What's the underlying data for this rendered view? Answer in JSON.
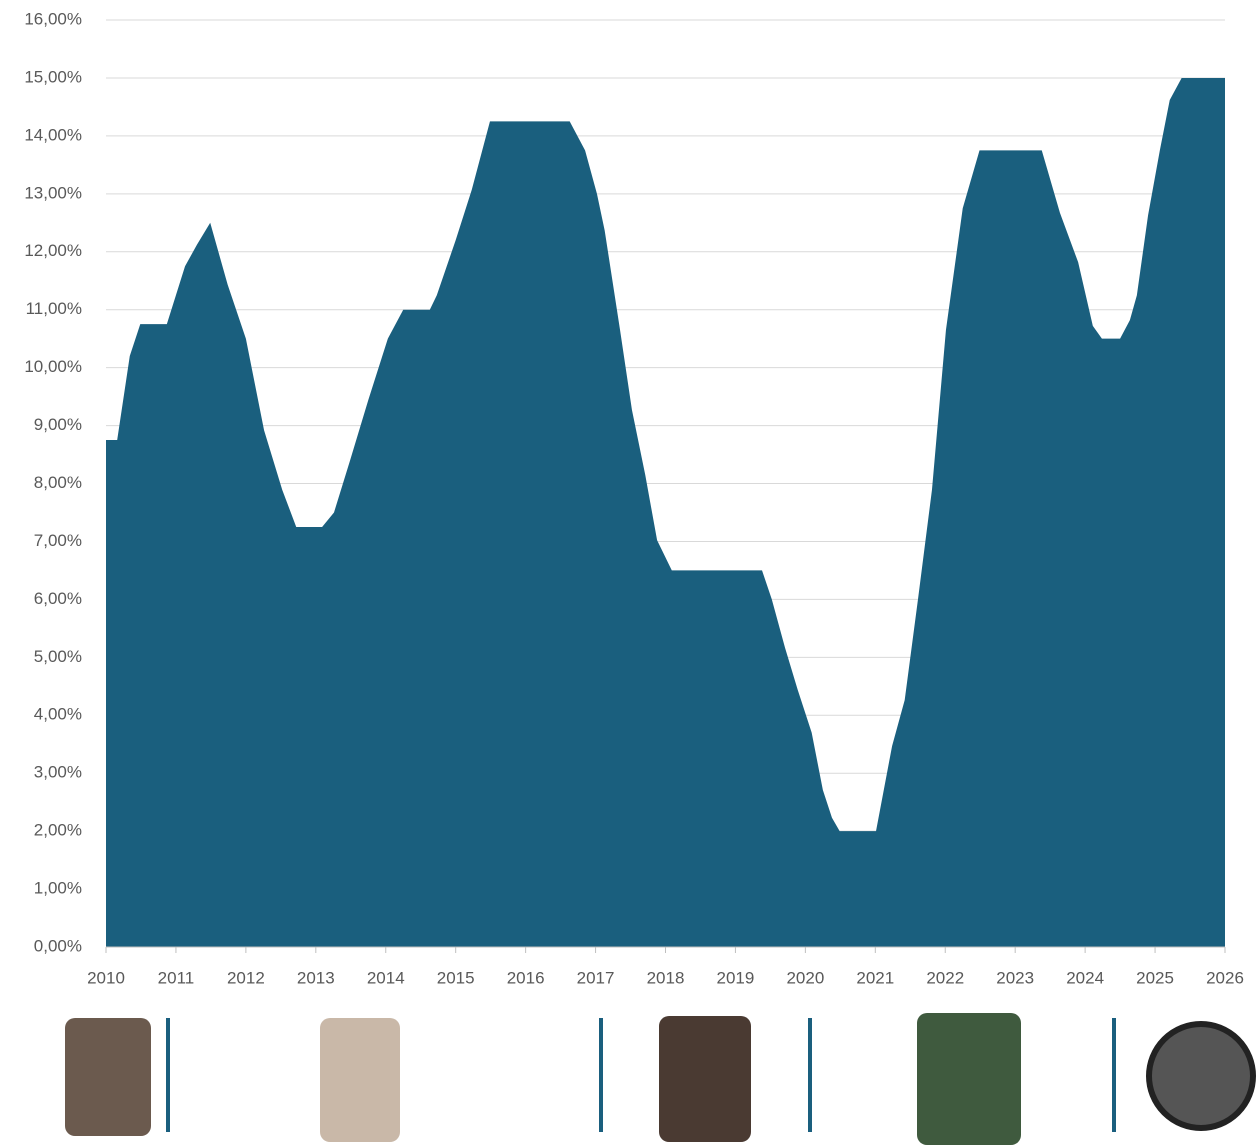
{
  "chart_data": {
    "type": "area",
    "color": "#1a5f7e",
    "grid": true,
    "x": [
      2010.0,
      2010.16,
      2010.34,
      2010.49,
      2010.87,
      2011.13,
      2011.3,
      2011.49,
      2011.74,
      2012.0,
      2012.26,
      2012.52,
      2012.72,
      2013.09,
      2013.26,
      2013.49,
      2013.75,
      2014.03,
      2014.25,
      2014.63,
      2014.73,
      2015.0,
      2015.23,
      2015.49,
      2016.63,
      2016.85,
      2017.02,
      2017.13,
      2017.35,
      2017.52,
      2017.71,
      2017.88,
      2018.09,
      2019.38,
      2019.52,
      2019.71,
      2019.89,
      2020.09,
      2020.25,
      2020.38,
      2020.49,
      2021.01,
      2021.24,
      2021.42,
      2021.61,
      2021.81,
      2022.01,
      2022.25,
      2022.49,
      2023.38,
      2023.64,
      2023.9,
      2024.11,
      2024.24,
      2024.5,
      2024.64,
      2024.74,
      2024.9,
      2025.07,
      2025.21,
      2025.38,
      2026.0
    ],
    "values": [
      8.75,
      8.75,
      10.2,
      10.75,
      10.75,
      11.75,
      12.12,
      12.5,
      11.43,
      10.5,
      8.92,
      7.89,
      7.25,
      7.25,
      7.5,
      8.4,
      9.44,
      10.5,
      11.0,
      11.0,
      11.25,
      12.2,
      13.07,
      14.25,
      14.25,
      13.75,
      13.0,
      12.37,
      10.65,
      9.27,
      8.15,
      7.02,
      6.5,
      6.5,
      6.0,
      5.16,
      4.44,
      3.7,
      2.71,
      2.23,
      2.0,
      2.0,
      3.47,
      4.26,
      6.0,
      7.89,
      10.65,
      12.75,
      13.75,
      13.75,
      12.67,
      11.82,
      10.72,
      10.5,
      10.5,
      10.82,
      11.25,
      12.63,
      13.76,
      14.62,
      15.0,
      15.0
    ],
    "xlim": [
      2010,
      2026
    ],
    "xticks": [
      2010,
      2011,
      2012,
      2013,
      2014,
      2015,
      2016,
      2017,
      2018,
      2019,
      2020,
      2021,
      2022,
      2023,
      2024,
      2025,
      2026
    ],
    "ylim": [
      0,
      16
    ],
    "yticks": [
      {
        "value": 0,
        "label": "0,00%"
      },
      {
        "value": 1,
        "label": "1,00%"
      },
      {
        "value": 2,
        "label": "2,00%"
      },
      {
        "value": 3,
        "label": "3,00%"
      },
      {
        "value": 4,
        "label": "4,00%"
      },
      {
        "value": 5,
        "label": "5,00%"
      },
      {
        "value": 6,
        "label": "6,00%"
      },
      {
        "value": 7,
        "label": "7,00%"
      },
      {
        "value": 8,
        "label": "8,00%"
      },
      {
        "value": 9,
        "label": "9,00%"
      },
      {
        "value": 10,
        "label": "10,00%"
      },
      {
        "value": 11,
        "label": "11,00%"
      },
      {
        "value": 12,
        "label": "12,00%"
      },
      {
        "value": 13,
        "label": "13,00%"
      },
      {
        "value": 14,
        "label": "14,00%"
      },
      {
        "value": 15,
        "label": "15,00%"
      },
      {
        "value": 16,
        "label": "16,00%"
      }
    ]
  }
}
